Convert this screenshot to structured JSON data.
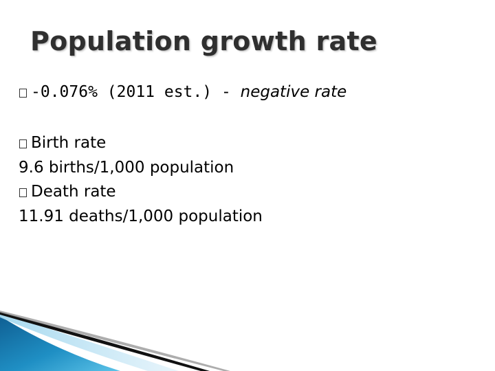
{
  "title": "Population growth rate",
  "lines": {
    "growth_value": "-0.076% (2011 est.) - ",
    "growth_note": "negative rate",
    "birth_label": "Birth rate",
    "birth_value": "9.6 births/1,000 population",
    "death_label": "Death rate",
    "death_value": "11.91 deaths/1,000 population"
  },
  "colors": {
    "title": "#2f2f2f",
    "accent": "#1b86b8"
  },
  "icons": {
    "bullet": "square-bullet-icon"
  }
}
